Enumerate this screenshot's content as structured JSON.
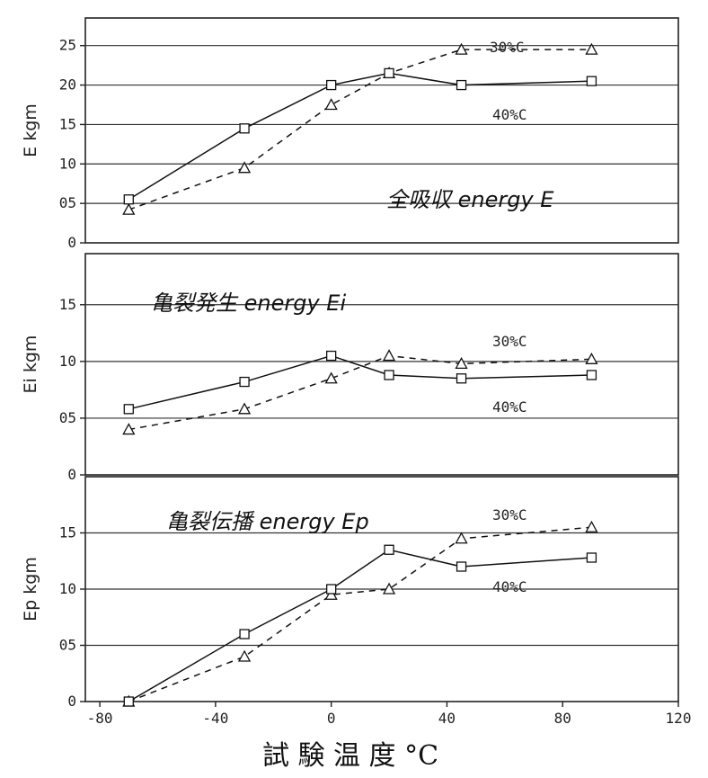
{
  "chart_data": [
    {
      "type": "line",
      "panel": "top",
      "ylabel": "E kgm",
      "annotation": "全吸収 energy E",
      "yticks": [
        "0",
        "05",
        "10",
        "15",
        "20",
        "25"
      ],
      "yticks_vals": [
        0,
        5,
        10,
        15,
        20,
        25
      ],
      "ylim": [
        0,
        28.5
      ],
      "series": [
        {
          "name": "30%C",
          "marker": "triangle",
          "dash": "dashed",
          "x": [
            -70,
            -30,
            0,
            20,
            45,
            90
          ],
          "y": [
            4.2,
            9.5,
            17.5,
            21.5,
            24.5,
            24.5
          ]
        },
        {
          "name": "40%C",
          "marker": "square",
          "dash": "solid",
          "x": [
            -70,
            -30,
            0,
            20,
            45,
            90
          ],
          "y": [
            5.5,
            14.5,
            20.0,
            21.5,
            20.0,
            20.5
          ]
        }
      ]
    },
    {
      "type": "line",
      "panel": "middle",
      "ylabel": "Ei kgm",
      "annotation": "亀裂発生 energy Ei",
      "yticks": [
        "0",
        "05",
        "10",
        "15"
      ],
      "yticks_vals": [
        0,
        0.5,
        1.0,
        1.5
      ],
      "ylim": [
        0,
        1.95
      ],
      "series": [
        {
          "name": "30%C",
          "marker": "triangle",
          "dash": "dashed",
          "x": [
            -70,
            -30,
            0,
            20,
            45,
            90
          ],
          "y": [
            0.4,
            0.58,
            0.85,
            1.05,
            0.98,
            1.02
          ]
        },
        {
          "name": "40%C",
          "marker": "square",
          "dash": "solid",
          "x": [
            -70,
            -30,
            0,
            20,
            45,
            90
          ],
          "y": [
            0.58,
            0.82,
            1.05,
            0.88,
            0.85,
            0.88
          ]
        }
      ]
    },
    {
      "type": "line",
      "panel": "bottom",
      "ylabel": "Ep kgm",
      "annotation": "亀裂伝播 energy Ep",
      "yticks": [
        "0",
        "05",
        "10",
        "15"
      ],
      "yticks_vals": [
        0,
        5,
        10,
        15
      ],
      "ylim": [
        0,
        20
      ],
      "series": [
        {
          "name": "30%C",
          "marker": "triangle",
          "dash": "dashed",
          "x": [
            -70,
            -30,
            0,
            20,
            45,
            90
          ],
          "y": [
            0,
            4.0,
            9.5,
            10.0,
            14.5,
            15.5
          ]
        },
        {
          "name": "40%C",
          "marker": "square",
          "dash": "solid",
          "x": [
            -70,
            -30,
            0,
            20,
            45,
            90
          ],
          "y": [
            0,
            6.0,
            10.0,
            13.5,
            12.0,
            12.8
          ]
        }
      ]
    }
  ],
  "xaxis": {
    "label": "試 験 温 度 °C",
    "xlim": [
      -85,
      120
    ],
    "ticks": [
      "-80",
      "-40",
      "0",
      "40",
      "80",
      "120"
    ],
    "ticks_vals": [
      -80,
      -40,
      0,
      40,
      80,
      120
    ]
  },
  "annotations": {
    "top_30": "30%C",
    "top_40": "40%C",
    "mid_30": "30%C",
    "mid_40": "40%C",
    "bot_30": "30%C",
    "bot_40": "40%C"
  }
}
